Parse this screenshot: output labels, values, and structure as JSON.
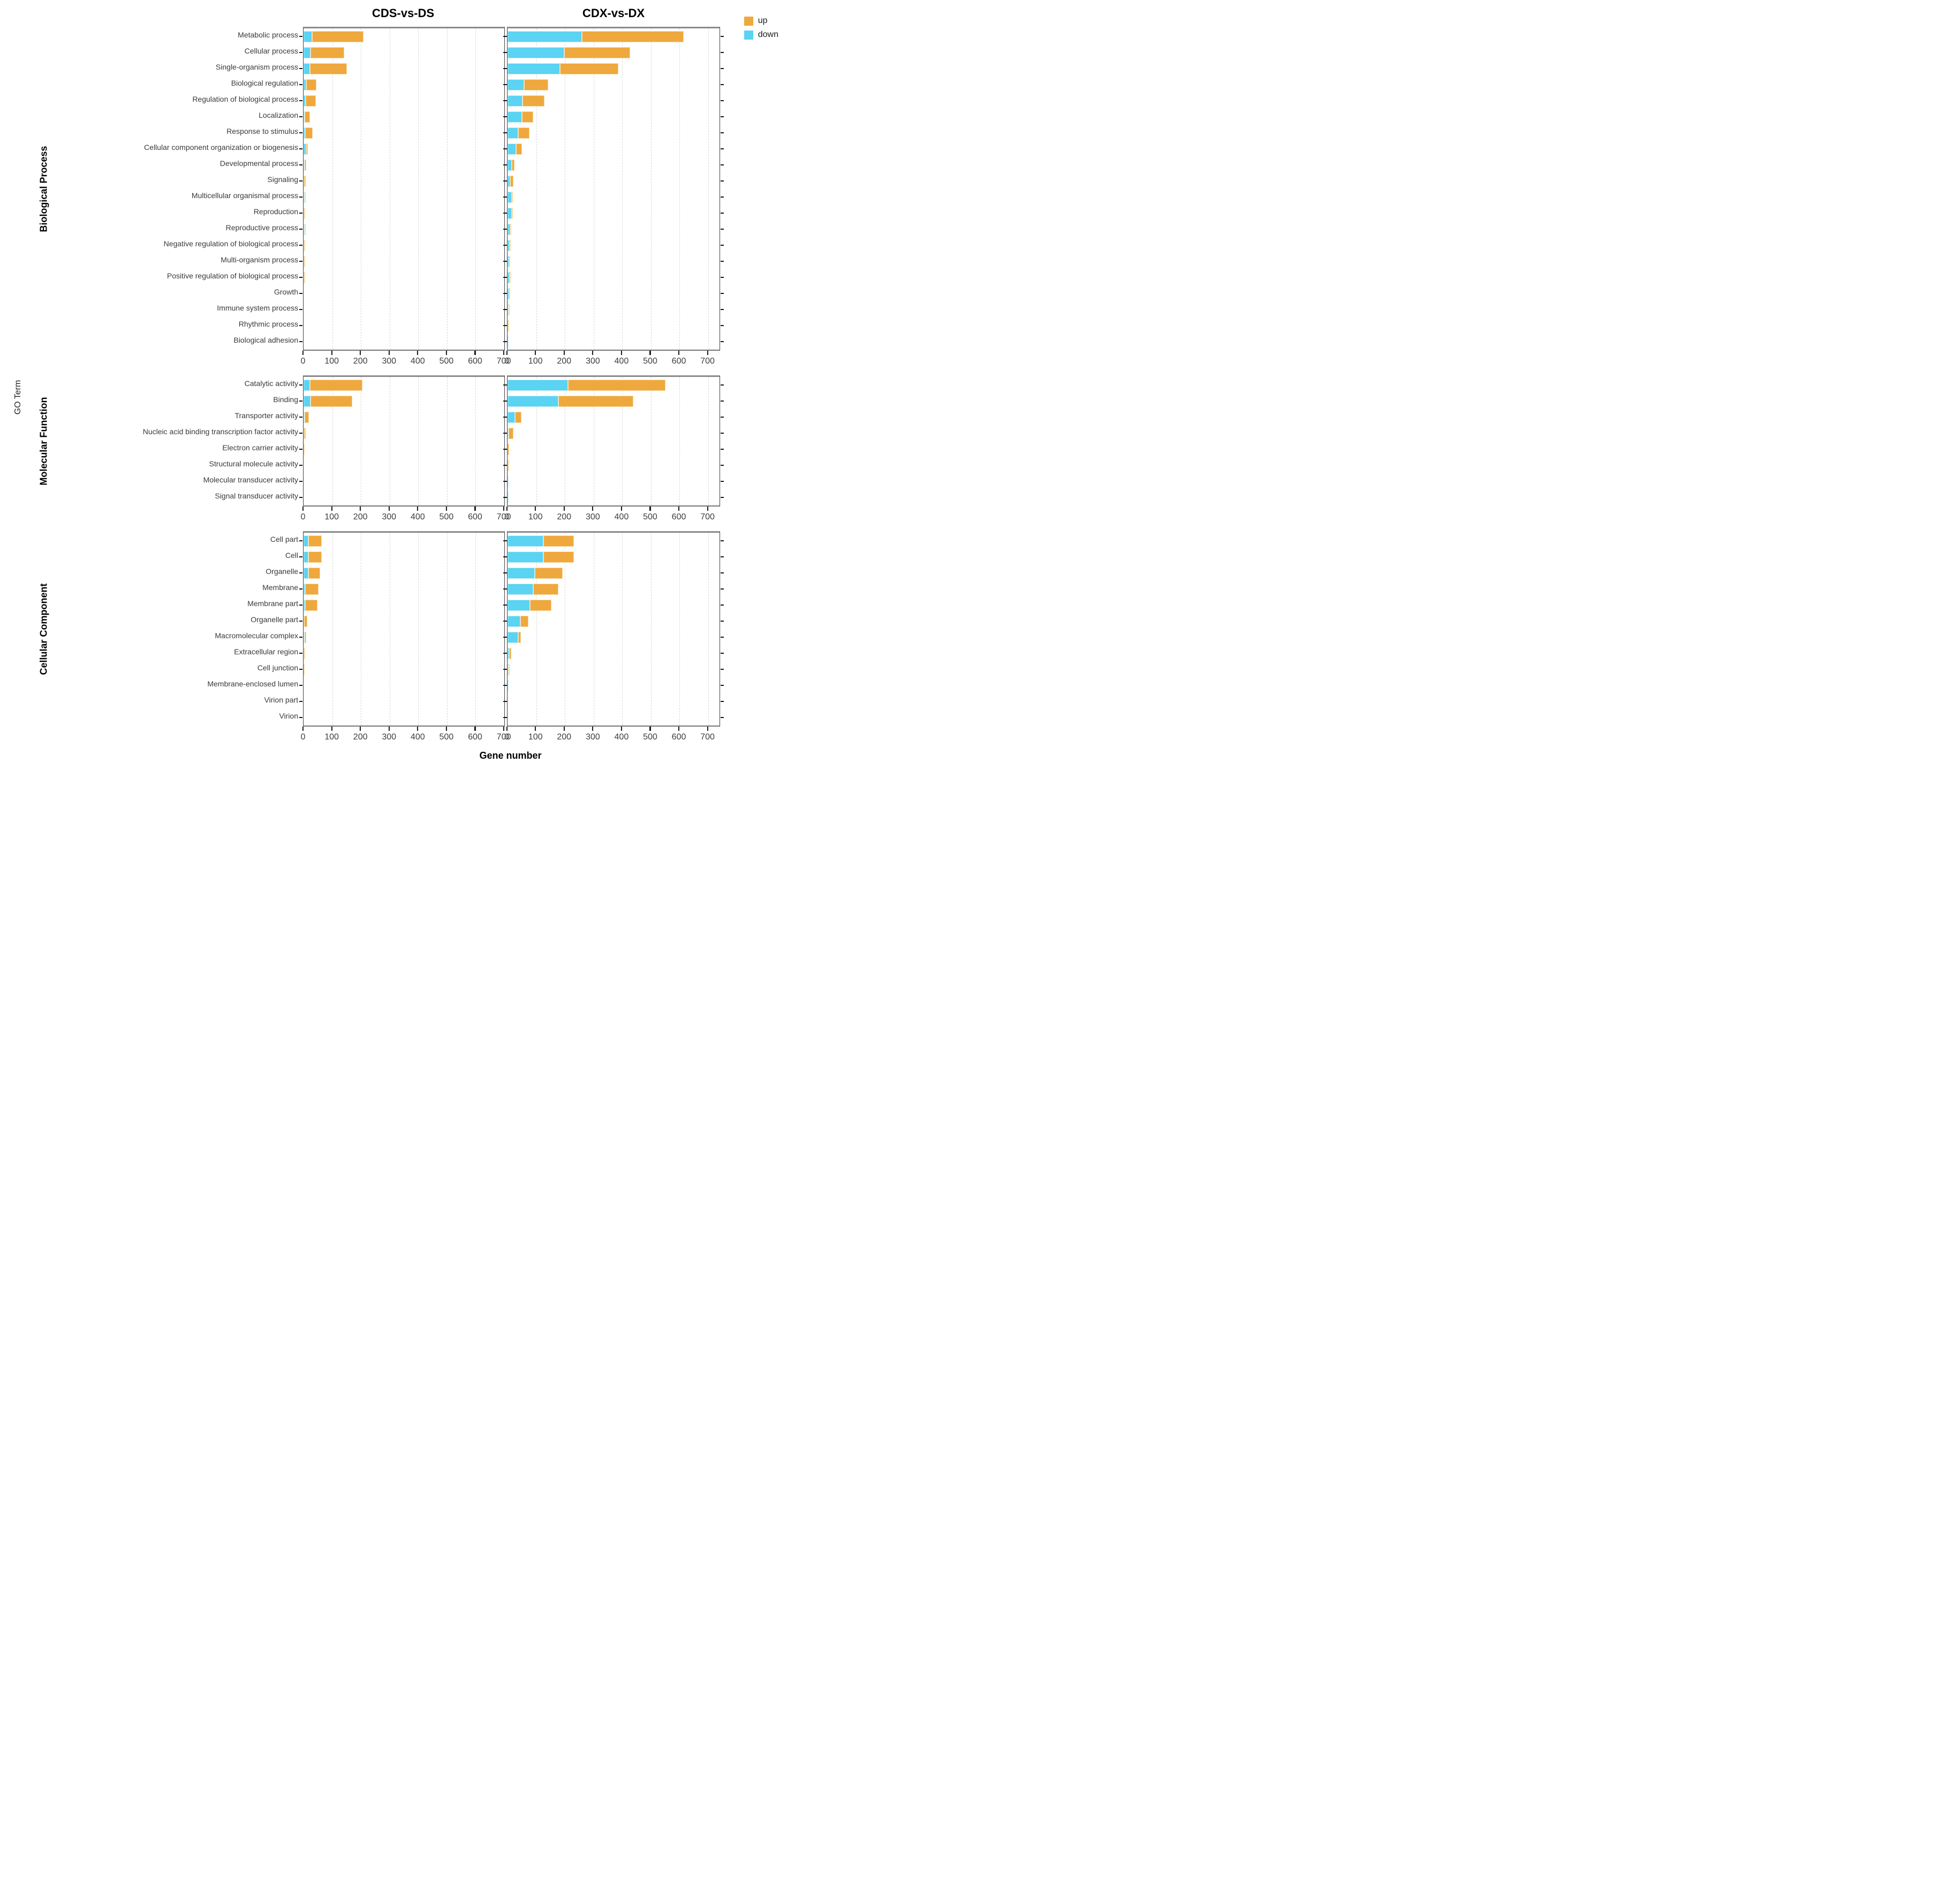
{
  "legend": {
    "up": "up",
    "down": "down"
  },
  "chart_data": {
    "type": "bar",
    "orientation": "horizontal",
    "stacked": true,
    "title_left": "CDS-vs-DS",
    "title_right": "CDX-vs-DX",
    "panels": [
      "CDS-vs-DS",
      "CDX-vs-DX"
    ],
    "xlabel": "Gene number",
    "ylabel": "GO Term",
    "xlim": [
      0,
      700
    ],
    "xticks": [
      0,
      100,
      200,
      300,
      400,
      500,
      600,
      700
    ],
    "grid": "dashed-vertical",
    "legend_position": "top-right",
    "colors": {
      "up": "#EFA83D",
      "down": "#5BD3F2",
      "up_edge": "#F8DCA8",
      "down_edge": "#C9EFFA"
    },
    "series_names": [
      "up",
      "down"
    ],
    "groups": [
      {
        "name": "Biological Process",
        "terms": [
          {
            "label": "Metabolic process",
            "cds_down": 29,
            "cds_up": 181,
            "cdx_down": 260,
            "cdx_up": 355
          },
          {
            "label": "Cellular process",
            "cds_down": 25,
            "cds_up": 116,
            "cdx_down": 197,
            "cdx_up": 230
          },
          {
            "label": "Single-organism process",
            "cds_down": 22,
            "cds_up": 129,
            "cdx_down": 182,
            "cdx_up": 205
          },
          {
            "label": "Biological regulation",
            "cds_down": 9,
            "cds_up": 35,
            "cdx_down": 57,
            "cdx_up": 84
          },
          {
            "label": "Regulation of biological process",
            "cds_down": 8,
            "cds_up": 35,
            "cdx_down": 52,
            "cdx_up": 76
          },
          {
            "label": "Localization",
            "cds_down": 4,
            "cds_up": 18,
            "cdx_down": 51,
            "cdx_up": 39
          },
          {
            "label": "Response to stimulus",
            "cds_down": 6,
            "cds_up": 25,
            "cdx_down": 38,
            "cdx_up": 38
          },
          {
            "label": "Cellular component organization or biogenesis",
            "cds_down": 10,
            "cds_up": 5,
            "cdx_down": 30,
            "cdx_up": 20
          },
          {
            "label": "Developmental process",
            "cds_down": 3,
            "cds_up": 6,
            "cdx_down": 15,
            "cdx_up": 10
          },
          {
            "label": "Signaling",
            "cds_down": 1,
            "cds_up": 6,
            "cdx_down": 10,
            "cdx_up": 11
          },
          {
            "label": "Multicellular organismal process",
            "cds_down": 3,
            "cds_up": 5,
            "cdx_down": 15,
            "cdx_up": 4
          },
          {
            "label": "Reproduction",
            "cds_down": 1,
            "cds_up": 1,
            "cdx_down": 15,
            "cdx_up": 2
          },
          {
            "label": "Reproductive process",
            "cds_down": 3,
            "cds_up": 1,
            "cdx_down": 10,
            "cdx_up": 3
          },
          {
            "label": "Negative regulation of biological process",
            "cds_down": 1,
            "cds_up": 1,
            "cdx_down": 7,
            "cdx_up": 4
          },
          {
            "label": "Multi-organism process",
            "cds_down": 1,
            "cds_up": 2,
            "cdx_down": 6,
            "cdx_up": 4
          },
          {
            "label": "Positive regulation of biological process",
            "cds_down": 1,
            "cds_up": 1,
            "cdx_down": 7,
            "cdx_up": 1
          },
          {
            "label": "Growth",
            "cds_down": 0,
            "cds_up": 0,
            "cdx_down": 5,
            "cdx_up": 1
          },
          {
            "label": "Immune system process",
            "cds_down": 0,
            "cds_up": 0,
            "cdx_down": 4,
            "cdx_up": 1
          },
          {
            "label": "Rhythmic process",
            "cds_down": 0,
            "cds_up": 0,
            "cdx_down": 1,
            "cdx_up": 1
          },
          {
            "label": "Biological adhesion",
            "cds_down": 0,
            "cds_up": 0,
            "cdx_down": 1,
            "cdx_up": 0
          }
        ]
      },
      {
        "name": "Molecular Function",
        "terms": [
          {
            "label": "Catalytic activity",
            "cds_down": 23,
            "cds_up": 183,
            "cdx_down": 210,
            "cdx_up": 341
          },
          {
            "label": "Binding",
            "cds_down": 24,
            "cds_up": 146,
            "cdx_down": 177,
            "cdx_up": 261
          },
          {
            "label": "Transporter activity",
            "cds_down": 3,
            "cds_up": 16,
            "cdx_down": 27,
            "cdx_up": 21
          },
          {
            "label": "Nucleic acid binding transcription factor activity",
            "cds_down": 1,
            "cds_up": 7,
            "cdx_down": 4,
            "cdx_up": 16
          },
          {
            "label": "Electron carrier activity",
            "cds_down": 0,
            "cds_up": 1,
            "cdx_down": 0,
            "cdx_up": 5
          },
          {
            "label": "Structural molecule activity",
            "cds_down": 0,
            "cds_up": 0,
            "cdx_down": 1,
            "cdx_up": 2
          },
          {
            "label": "Molecular transducer activity",
            "cds_down": 0,
            "cds_up": 0,
            "cdx_down": 4,
            "cdx_up": 0
          },
          {
            "label": "Signal transducer activity",
            "cds_down": 0,
            "cds_up": 0,
            "cdx_down": 1,
            "cdx_up": 0
          }
        ]
      },
      {
        "name": "Cellular Component",
        "terms": [
          {
            "label": "Cell part",
            "cds_down": 16,
            "cds_up": 47,
            "cdx_down": 125,
            "cdx_up": 106
          },
          {
            "label": "Cell",
            "cds_down": 16,
            "cds_up": 48,
            "cdx_down": 125,
            "cdx_up": 106
          },
          {
            "label": "Organelle",
            "cds_down": 16,
            "cds_up": 42,
            "cdx_down": 96,
            "cdx_up": 96
          },
          {
            "label": "Membrane",
            "cds_down": 5,
            "cds_up": 47,
            "cdx_down": 90,
            "cdx_up": 88
          },
          {
            "label": "Membrane part",
            "cds_down": 5,
            "cds_up": 44,
            "cdx_down": 79,
            "cdx_up": 75
          },
          {
            "label": "Organelle part",
            "cds_down": 2,
            "cds_up": 11,
            "cdx_down": 44,
            "cdx_up": 28
          },
          {
            "label": "Macromolecular complex",
            "cds_down": 3,
            "cds_up": 6,
            "cdx_down": 38,
            "cdx_up": 8
          },
          {
            "label": "Extracellular region",
            "cds_down": 1,
            "cds_up": 3,
            "cdx_down": 6,
            "cdx_up": 8
          },
          {
            "label": "Cell junction",
            "cds_down": 0,
            "cds_up": 1,
            "cdx_down": 3,
            "cdx_up": 2
          },
          {
            "label": "Membrane-enclosed lumen",
            "cds_down": 0,
            "cds_up": 0,
            "cdx_down": 1,
            "cdx_up": 0
          },
          {
            "label": "Virion part",
            "cds_down": 0,
            "cds_up": 0,
            "cdx_down": 0,
            "cdx_up": 0
          },
          {
            "label": "Virion",
            "cds_down": 0,
            "cds_up": 0,
            "cdx_down": 0,
            "cdx_up": 0
          }
        ]
      }
    ]
  }
}
